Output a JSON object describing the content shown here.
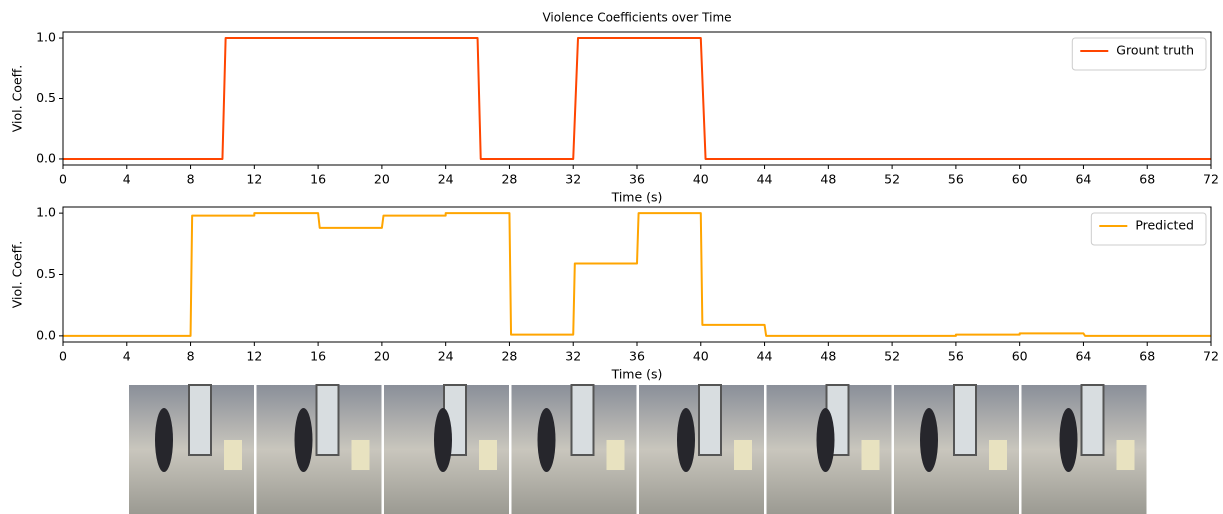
{
  "chart_data": [
    {
      "type": "line",
      "title": "Violence Coefficients over Time",
      "xlabel": "Time (s)",
      "ylabel": "Viol. Coeff.",
      "x": [
        0,
        10,
        10.2,
        26,
        26.2,
        32,
        32.3,
        40,
        40.3,
        72
      ],
      "series": [
        {
          "name": "Grount truth",
          "color": "#ff4500",
          "values": [
            0,
            0,
            1,
            1,
            0,
            0,
            1,
            1,
            0,
            0
          ]
        }
      ],
      "xlim": [
        0,
        72
      ],
      "ylim": [
        -0.05,
        1.05
      ],
      "xticks": [
        0,
        4,
        8,
        12,
        16,
        20,
        24,
        28,
        32,
        36,
        40,
        44,
        48,
        52,
        56,
        60,
        64,
        68,
        72
      ],
      "yticks": [
        {
          "value": 0,
          "label": "0.0"
        },
        {
          "value": 0.5,
          "label": "0.5"
        },
        {
          "value": 1,
          "label": "1.0"
        }
      ],
      "legend": "upper right"
    },
    {
      "type": "line",
      "xlabel": "Time (s)",
      "ylabel": "Viol. Coeff.",
      "x": [
        0,
        8,
        8.1,
        12,
        12,
        16,
        16.1,
        20,
        20.1,
        24,
        24,
        28,
        28.1,
        32,
        32.1,
        36,
        36.1,
        40,
        40.1,
        44,
        44.1,
        56,
        56,
        60,
        60,
        64,
        64.1,
        72
      ],
      "series": [
        {
          "name": "Predicted",
          "color": "#ffa500",
          "values": [
            0,
            0,
            0.98,
            0.98,
            1.0,
            1.0,
            0.88,
            0.88,
            0.98,
            0.98,
            1.0,
            1.0,
            0.01,
            0.01,
            0.59,
            0.59,
            1.0,
            1.0,
            0.09,
            0.09,
            0.0,
            0.0,
            0.01,
            0.01,
            0.02,
            0.02,
            0.0,
            0.0
          ]
        }
      ],
      "xlim": [
        0,
        72
      ],
      "ylim": [
        -0.05,
        1.05
      ],
      "xticks": [
        0,
        4,
        8,
        12,
        16,
        20,
        24,
        28,
        32,
        36,
        40,
        44,
        48,
        52,
        56,
        60,
        64,
        68,
        72
      ],
      "yticks": [
        {
          "value": 0,
          "label": "0.0"
        },
        {
          "value": 0.5,
          "label": "0.5"
        },
        {
          "value": 1,
          "label": "1.0"
        }
      ],
      "legend": "upper right"
    }
  ]
}
